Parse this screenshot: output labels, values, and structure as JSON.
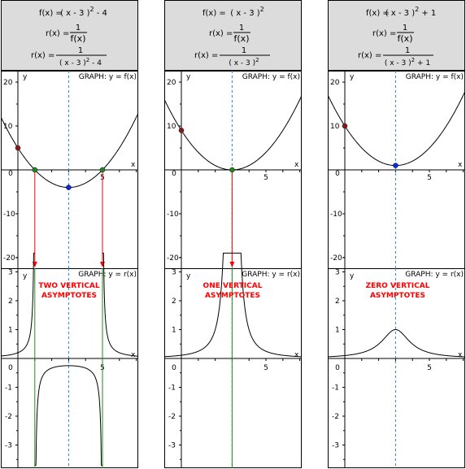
{
  "header": {
    "f_label": "f(x) =",
    "r_label": "r(x) =",
    "one": "1",
    "fx": "f(x)",
    "square": "2"
  },
  "colors": {
    "header_bg": "#dcdcdc",
    "axis": "#000000",
    "curve": "#000000",
    "dashed": "#1b87d6",
    "red_point": "#8b1a1a",
    "green_point": "#1f8a1f",
    "blue_point": "#1028e0",
    "arrow": "#ff0000",
    "asymptote": "#1f8a1f",
    "annotation": "#ff0000"
  },
  "chart_data": [
    {
      "type": "line",
      "panel": "left",
      "header": {
        "f_expr": "( x - 3 )",
        "f_tail": " - 4",
        "r_den": "( x - 3 )",
        "r_den_tail": " - 4"
      },
      "top": {
        "ylabel": "y",
        "xlabel": "x",
        "graph_label": "GRAPH: y = f(x)",
        "xticks": [
          "0",
          "5"
        ],
        "yticks": [
          "20",
          "10",
          "0",
          "-10",
          "-20"
        ],
        "series": [
          {
            "name": "f(x)",
            "function": "(x-3)^2 - 4"
          }
        ],
        "points": [
          {
            "x": 0,
            "y": 5,
            "color": "red"
          },
          {
            "x": 1,
            "y": 0,
            "color": "green"
          },
          {
            "x": 5,
            "y": 0,
            "color": "green"
          },
          {
            "x": 3,
            "y": -4,
            "color": "blue"
          }
        ],
        "dashed_x": 3,
        "arrows_at_x": [
          1,
          5
        ]
      },
      "bottom": {
        "ylabel": "y",
        "xlabel": "x",
        "graph_label": "GRAPH: y = r(x)",
        "annotation": [
          "TWO VERTICAL",
          "ASYMPTOTES"
        ],
        "xticks": [
          "0",
          "5"
        ],
        "yticks": [
          "3",
          "2",
          "1",
          "0",
          "-1",
          "-2",
          "-3"
        ],
        "series": [
          {
            "name": "r(x)",
            "function": "1/((x-3)^2 - 4)"
          }
        ],
        "asymptotes_x": [
          1,
          5
        ],
        "dashed_x": 3
      }
    },
    {
      "type": "line",
      "panel": "middle",
      "header": {
        "f_expr": "( x - 3 )",
        "f_tail": "",
        "r_den": "( x - 3 )",
        "r_den_tail": ""
      },
      "top": {
        "ylabel": "y",
        "xlabel": "x",
        "graph_label": "GRAPH: y = f(x)",
        "xticks": [
          "0",
          "5"
        ],
        "yticks": [
          "20",
          "10",
          "0",
          "-10",
          "-20"
        ],
        "series": [
          {
            "name": "f(x)",
            "function": "(x-3)^2"
          }
        ],
        "points": [
          {
            "x": 0,
            "y": 9,
            "color": "red"
          },
          {
            "x": 3,
            "y": 0,
            "color": "green"
          }
        ],
        "dashed_x": 3,
        "arrows_at_x": [
          3
        ]
      },
      "bottom": {
        "ylabel": "y",
        "xlabel": "x",
        "graph_label": "GRAPH: y = r(x)",
        "annotation": [
          "ONE VERTICAL",
          "ASYMPTOTES"
        ],
        "xticks": [
          "0",
          "5"
        ],
        "yticks": [
          "3",
          "2",
          "1",
          "0",
          "-1",
          "-2",
          "-3"
        ],
        "series": [
          {
            "name": "r(x)",
            "function": "1/(x-3)^2"
          }
        ],
        "asymptotes_x": [
          3
        ],
        "dashed_x": 3
      }
    },
    {
      "type": "line",
      "panel": "right",
      "header": {
        "f_expr": "( x - 3 )",
        "f_tail": " + 1",
        "r_den": "( x - 3 )",
        "r_den_tail": " + 1"
      },
      "top": {
        "ylabel": "y",
        "xlabel": "x",
        "graph_label": "GRAPH: y = f(x)",
        "xticks": [
          "0",
          "5"
        ],
        "yticks": [
          "20",
          "10",
          "0",
          "-10",
          "-20"
        ],
        "series": [
          {
            "name": "f(x)",
            "function": "(x-3)^2 + 1"
          }
        ],
        "points": [
          {
            "x": 0,
            "y": 10,
            "color": "red"
          },
          {
            "x": 3,
            "y": 1,
            "color": "blue"
          }
        ],
        "dashed_x": 3,
        "arrows_at_x": []
      },
      "bottom": {
        "ylabel": "y",
        "xlabel": "x",
        "graph_label": "GRAPH: y = r(x)",
        "annotation": [
          "ZERO VERTICAL",
          "ASYMPTOTES"
        ],
        "xticks": [
          "0",
          "5"
        ],
        "yticks": [
          "3",
          "2",
          "1",
          "0",
          "-1",
          "-2",
          "-3"
        ],
        "series": [
          {
            "name": "r(x)",
            "function": "1/((x-3)^2 + 1)"
          }
        ],
        "asymptotes_x": [],
        "dashed_x": 3
      }
    }
  ]
}
